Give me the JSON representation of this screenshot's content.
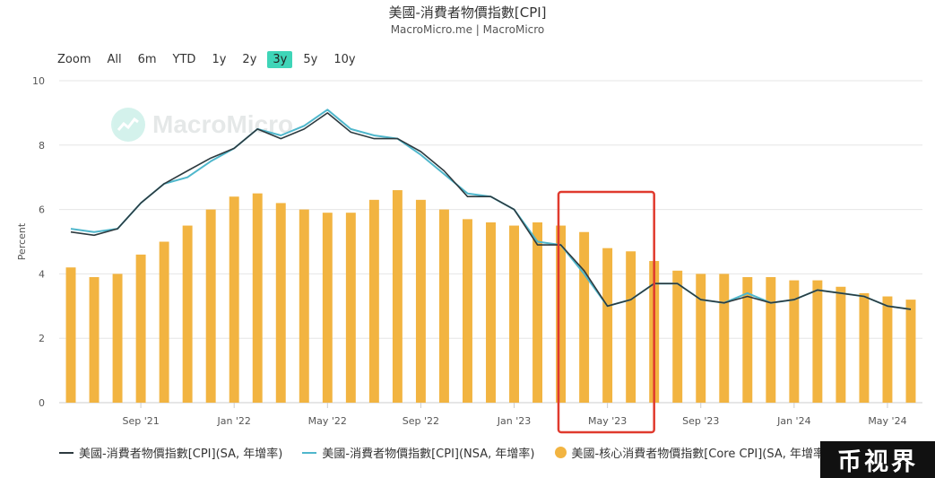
{
  "header": {
    "title": "美國-消費者物價指數[CPI]",
    "subtitle": "MacroMicro.me | MacroMicro"
  },
  "zoom": {
    "label": "Zoom",
    "buttons": [
      "All",
      "6m",
      "YTD",
      "1y",
      "2y",
      "3y",
      "5y",
      "10y"
    ],
    "active": "3y"
  },
  "watermark": {
    "text": "MacroMicro"
  },
  "badge": {
    "text": "币视界"
  },
  "colors": {
    "sa_line": "#2d3a3f",
    "nsa_line": "#4fb7cc",
    "core_bar": "#f2b441",
    "highlight": "#e03a2e",
    "grid": "#e6e6e6"
  },
  "chart_data": {
    "type": "bar+line",
    "ylabel": "Percent",
    "ylim": [
      0,
      10
    ],
    "yticks": [
      0,
      2,
      4,
      6,
      8,
      10
    ],
    "x_start": "2021-06",
    "x_ticks": [
      {
        "label": "Sep '21",
        "index": 3
      },
      {
        "label": "Jan '22",
        "index": 7
      },
      {
        "label": "May '22",
        "index": 11
      },
      {
        "label": "Sep '22",
        "index": 15
      },
      {
        "label": "Jan '23",
        "index": 19
      },
      {
        "label": "May '23",
        "index": 23
      },
      {
        "label": "Sep '23",
        "index": 27
      },
      {
        "label": "Jan '24",
        "index": 31
      },
      {
        "label": "May '24",
        "index": 35
      }
    ],
    "highlight_range": {
      "from_index": 21.4,
      "to_index": 25.5
    },
    "series": [
      {
        "name": "美國-消費者物價指數[CPI](SA, 年增率)",
        "kind": "line",
        "values": [
          5.3,
          5.2,
          5.4,
          6.2,
          6.8,
          7.2,
          7.6,
          7.9,
          8.5,
          8.2,
          8.5,
          9.0,
          8.4,
          8.2,
          8.2,
          7.8,
          7.2,
          6.4,
          6.4,
          6.0,
          4.9,
          4.9,
          4.1,
          3.0,
          3.2,
          3.7,
          3.7,
          3.2,
          3.1,
          3.3,
          3.1,
          3.2,
          3.5,
          3.4,
          3.3,
          3.0,
          2.9
        ]
      },
      {
        "name": "美國-消費者物價指數[CPI](NSA, 年增率)",
        "kind": "line",
        "values": [
          5.4,
          5.3,
          5.4,
          6.2,
          6.8,
          7.0,
          7.5,
          7.9,
          8.5,
          8.3,
          8.6,
          9.1,
          8.5,
          8.3,
          8.2,
          7.7,
          7.1,
          6.5,
          6.4,
          6.0,
          5.0,
          4.9,
          4.0,
          3.0,
          3.2,
          3.7,
          3.7,
          3.2,
          3.1,
          3.4,
          3.1,
          3.2,
          3.5,
          3.4,
          3.3,
          3.0,
          2.9
        ]
      },
      {
        "name": "美國-核心消費者物價指數[Core CPI](SA, 年增率)",
        "kind": "bar",
        "values": [
          4.2,
          3.9,
          4.0,
          4.6,
          5.0,
          5.5,
          6.0,
          6.4,
          6.5,
          6.2,
          6.0,
          5.9,
          5.9,
          6.3,
          6.6,
          6.3,
          6.0,
          5.7,
          5.6,
          5.5,
          5.6,
          5.5,
          5.3,
          4.8,
          4.7,
          4.4,
          4.1,
          4.0,
          4.0,
          3.9,
          3.9,
          3.8,
          3.8,
          3.6,
          3.4,
          3.3,
          3.2
        ]
      }
    ]
  }
}
